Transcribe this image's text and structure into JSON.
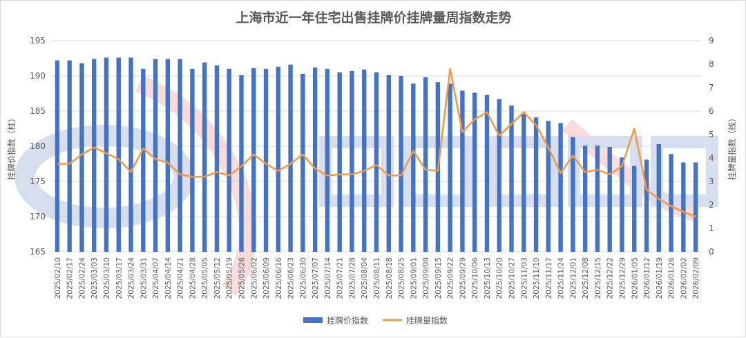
{
  "chart_data": {
    "type": "bar+line",
    "title": "上海市近一年住宅出售挂牌价挂牌量周指数走势",
    "ylabel_left": "挂牌价指数（柱）",
    "ylabel_right": "挂牌量指数（线）",
    "ylim_left": [
      165,
      195
    ],
    "yticks_left": [
      165,
      170,
      175,
      180,
      185,
      190,
      195
    ],
    "ylim_right": [
      0,
      9
    ],
    "yticks_right": [
      0,
      1,
      2,
      3,
      4,
      5,
      6,
      7,
      8,
      9
    ],
    "grid": true,
    "legend_position": "bottom",
    "x": [
      "2025/02/10",
      "2025/02/17",
      "2025/02/24",
      "2025/03/03",
      "2025/03/10",
      "2025/03/17",
      "2025/03/24",
      "2025/03/31",
      "2025/04/07",
      "2025/04/14",
      "2025/04/21",
      "2025/04/28",
      "2025/05/05",
      "2025/05/12",
      "2025/05/19",
      "2025/05/26",
      "2025/06/02",
      "2025/06/09",
      "2025/06/16",
      "2025/06/23",
      "2025/06/30",
      "2025/07/07",
      "2025/07/14",
      "2025/07/21",
      "2025/07/28",
      "2025/08/04",
      "2025/08/11",
      "2025/08/18",
      "2025/08/25",
      "2025/09/01",
      "2025/09/08",
      "2025/09/15",
      "2025/09/22",
      "2025/09/29",
      "2025/10/06",
      "2025/10/13",
      "2025/10/20",
      "2025/10/27",
      "2025/11/03",
      "2025/11/10",
      "2025/11/17",
      "2025/11/24",
      "2025/12/01",
      "2025/12/08",
      "2025/12/15",
      "2025/12/22",
      "2025/12/29",
      "2026/01/05",
      "2026/01/12",
      "2026/01/19",
      "2026/01/26",
      "2026/02/02",
      "2026/02/09"
    ],
    "series": [
      {
        "name": "挂牌价指数",
        "type": "bar",
        "axis": "left",
        "color": "#4472c4",
        "values": [
          192.2,
          192.2,
          191.8,
          192.4,
          192.6,
          192.6,
          192.6,
          191.0,
          192.4,
          192.4,
          192.4,
          191.0,
          191.9,
          191.5,
          191.0,
          190.1,
          191.1,
          191.0,
          191.3,
          191.6,
          190.3,
          191.2,
          191.0,
          190.5,
          190.7,
          190.9,
          190.5,
          190.1,
          190.0,
          188.9,
          189.8,
          189.1,
          188.9,
          187.9,
          187.6,
          187.3,
          186.7,
          185.8,
          184.8,
          184.1,
          183.6,
          183.3,
          181.3,
          180.1,
          180.1,
          179.9,
          178.4,
          177.2,
          178.1,
          180.3,
          178.9,
          177.7,
          177.7
        ]
      },
      {
        "name": "挂牌量指数",
        "type": "line",
        "axis": "right",
        "color": "#ed9b4a",
        "values": [
          3.75,
          3.75,
          4.15,
          4.45,
          4.2,
          3.95,
          3.4,
          4.4,
          3.95,
          3.8,
          3.3,
          3.2,
          3.2,
          3.4,
          3.25,
          3.65,
          4.15,
          3.75,
          3.45,
          3.75,
          4.15,
          3.55,
          3.25,
          3.3,
          3.3,
          3.45,
          3.7,
          3.25,
          3.25,
          4.3,
          3.5,
          3.45,
          7.8,
          5.1,
          5.65,
          5.95,
          4.95,
          5.45,
          5.95,
          5.4,
          4.45,
          3.35,
          4.1,
          3.4,
          3.5,
          3.3,
          3.65,
          5.25,
          2.65,
          2.25,
          1.95,
          1.7,
          1.5
        ]
      }
    ]
  }
}
